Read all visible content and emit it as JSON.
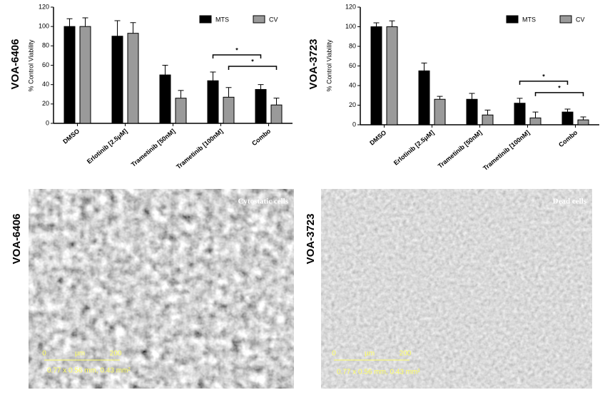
{
  "chart_data": [
    {
      "type": "bar",
      "title": "VOA-6406",
      "y_label": "% Control Viability",
      "categories": [
        "DMSO",
        "Erlotinib [2.5μM]",
        "Trametinib [50nM]",
        "Trametinib [100nM]",
        "Combo"
      ],
      "series": [
        {
          "name": "MTS",
          "color": "#000000",
          "values": [
            100,
            90,
            50,
            44,
            35
          ],
          "errors": [
            8,
            16,
            10,
            9,
            5
          ]
        },
        {
          "name": "CV",
          "color": "#9a9a9a",
          "values": [
            100,
            93,
            26,
            27,
            19
          ],
          "errors": [
            9,
            11,
            8,
            10,
            7
          ]
        }
      ],
      "ylim": [
        0,
        120
      ],
      "yticks": [
        0,
        20,
        40,
        60,
        80,
        100,
        120
      ],
      "legend": "top-right",
      "significance": [
        {
          "label": "*",
          "categories": [
            3,
            4
          ],
          "series": [
            0,
            0
          ]
        },
        {
          "label": "*",
          "categories": [
            3,
            4
          ],
          "series": [
            1,
            1
          ]
        }
      ]
    },
    {
      "type": "bar",
      "title": "VOA-3723",
      "y_label": "% Control Viability",
      "categories": [
        "DMSO",
        "Erlotinib [2.5μM]",
        "Trametinib [50nM]",
        "Trametinib [100nM]",
        "Combo"
      ],
      "series": [
        {
          "name": "MTS",
          "color": "#000000",
          "values": [
            100,
            55,
            26,
            22,
            13
          ],
          "errors": [
            4,
            8,
            6,
            5,
            3
          ]
        },
        {
          "name": "CV",
          "color": "#9a9a9a",
          "values": [
            100,
            26,
            10,
            7,
            5
          ],
          "errors": [
            6,
            3,
            5,
            6,
            3
          ]
        }
      ],
      "ylim": [
        0,
        120
      ],
      "yticks": [
        0,
        20,
        40,
        60,
        80,
        100,
        120
      ],
      "legend": "top-right",
      "significance": [
        {
          "label": "*",
          "categories": [
            3,
            4
          ],
          "series": [
            0,
            0
          ]
        },
        {
          "label": "*",
          "categories": [
            3,
            4
          ],
          "series": [
            1,
            1
          ]
        }
      ]
    }
  ],
  "images": [
    {
      "label": "VOA-6406",
      "caption": "Cytostatic cells",
      "scale": {
        "start": "0",
        "unit": "µm",
        "end": "200",
        "field": "0.77 x 0.56 mm, 0.43 mm²"
      }
    },
    {
      "label": "VOA-3723",
      "caption": "Dead cells",
      "scale": {
        "start": "0",
        "unit": "µm",
        "end": "200",
        "field": "0.77 x 0.56 mm, 0.43 mm²"
      }
    }
  ]
}
